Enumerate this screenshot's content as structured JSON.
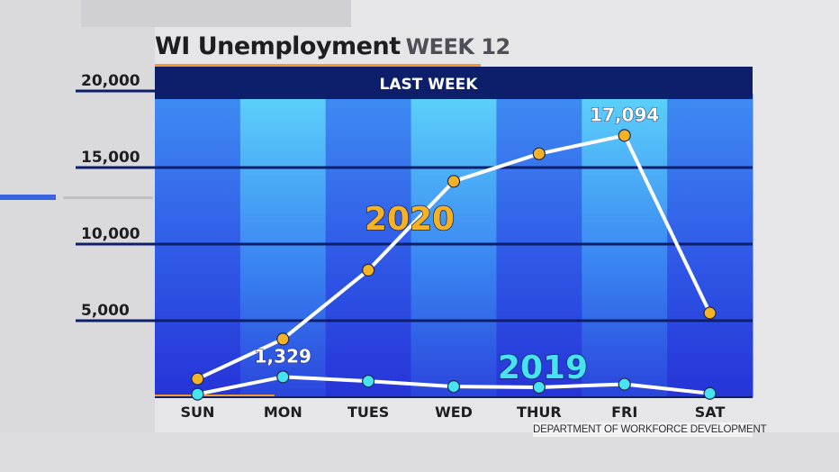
{
  "title": {
    "main": "WI Unemployment",
    "week": "WEEK 12"
  },
  "banner": "LAST WEEK",
  "source": "DEPARTMENT OF WORKFORCE DEVELOPMENT",
  "chart_data": {
    "type": "line",
    "title": "WI Unemployment WEEK 12",
    "subtitle": "LAST WEEK",
    "categories": [
      "SUN",
      "MON",
      "TUES",
      "WED",
      "THUR",
      "FRI",
      "SAT"
    ],
    "ylim": [
      0,
      20000
    ],
    "yticks": [
      5000,
      10000,
      15000,
      20000
    ],
    "ytick_labels": [
      "5,000",
      "10,000",
      "15,000",
      "20,000"
    ],
    "grid": true,
    "series": [
      {
        "name": "2020",
        "values": [
          1200,
          3800,
          8300,
          14100,
          15900,
          17094,
          5500
        ],
        "color": "#f5b225"
      },
      {
        "name": "2019",
        "values": [
          200,
          1329,
          1050,
          700,
          650,
          850,
          250
        ],
        "color": "#47e3f0"
      }
    ],
    "annotations": [
      {
        "series": "2020",
        "category": "FRI",
        "text": "17,094"
      },
      {
        "series": "2019",
        "category": "MON",
        "text": "1,329"
      }
    ]
  },
  "colors": {
    "navy": "#0d1f6b",
    "bar_band": "#3b6df0",
    "bar_band_light": "#4cb6f7",
    "accent_orange": "#f39a2e"
  }
}
